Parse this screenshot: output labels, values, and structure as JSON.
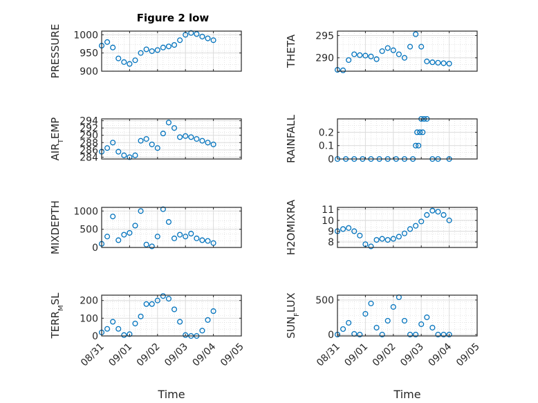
{
  "figure": {
    "title": "Figure 2 low"
  },
  "chart_data": [
    {
      "type": "scatter",
      "title": "Figure 2 low",
      "ylabel": "PRESSURE",
      "xlabel": "",
      "xlim": [
        "08/31",
        "09/05"
      ],
      "ylim": [
        900,
        1010
      ],
      "yticks": [
        "900",
        "950",
        "1000"
      ],
      "xticks": [],
      "x": [
        0.0,
        0.2,
        0.4,
        0.6,
        0.8,
        1.0,
        1.2,
        1.4,
        1.6,
        1.8,
        2.0,
        2.2,
        2.4,
        2.6,
        2.8,
        3.0,
        3.2,
        3.4,
        3.6,
        3.8,
        4.0
      ],
      "y": [
        970,
        980,
        965,
        935,
        925,
        920,
        930,
        950,
        960,
        955,
        958,
        965,
        968,
        972,
        985,
        1000,
        1005,
        1002,
        995,
        990,
        985
      ]
    },
    {
      "type": "scatter",
      "ylabel": "THETA",
      "xlabel": "",
      "xlim": [
        "08/31",
        "09/05"
      ],
      "ylim": [
        287,
        296
      ],
      "yticks": [
        "290",
        "295"
      ],
      "xticks": [],
      "x": [
        0.0,
        0.2,
        0.4,
        0.6,
        0.8,
        1.0,
        1.2,
        1.4,
        1.6,
        1.8,
        2.0,
        2.2,
        2.4,
        2.6,
        2.8,
        3.0,
        3.2,
        3.4,
        3.6,
        3.8,
        4.0
      ],
      "y": [
        287.3,
        287.2,
        289.5,
        290.8,
        290.6,
        290.5,
        290.3,
        289.7,
        291.5,
        292.2,
        291.7,
        290.8,
        290.0,
        292.5,
        295.3,
        292.5,
        289.2,
        289.0,
        288.9,
        288.8,
        288.7
      ]
    },
    {
      "type": "scatter",
      "ylabel": "AIR_TEMP",
      "xlabel": "",
      "xlim": [
        "08/31",
        "09/05"
      ],
      "ylim": [
        283.5,
        294.5
      ],
      "yticks": [
        "284",
        "286",
        "288",
        "290",
        "292",
        "294"
      ],
      "xticks": [],
      "x": [
        0.0,
        0.2,
        0.4,
        0.6,
        0.8,
        1.0,
        1.2,
        1.4,
        1.6,
        1.8,
        2.0,
        2.2,
        2.4,
        2.6,
        2.8,
        3.0,
        3.2,
        3.4,
        3.6,
        3.8,
        4.0
      ],
      "y": [
        285.5,
        286.5,
        288.0,
        285.5,
        284.5,
        284.0,
        284.5,
        288.5,
        289.0,
        287.5,
        286.5,
        290.5,
        293.5,
        292.0,
        289.5,
        289.8,
        289.5,
        289.0,
        288.5,
        288.0,
        287.5
      ]
    },
    {
      "type": "scatter",
      "ylabel": "RAINFALL",
      "xlabel": "",
      "xlim": [
        "08/31",
        "09/05"
      ],
      "ylim": [
        0,
        0.3
      ],
      "yticks": [
        "0",
        "0.1",
        "0.2"
      ],
      "xticks": [],
      "x": [
        0.0,
        0.3,
        0.6,
        0.9,
        1.2,
        1.5,
        1.8,
        2.1,
        2.4,
        2.7,
        2.8,
        2.85,
        2.9,
        2.95,
        3.0,
        3.05,
        3.1,
        3.2,
        3.4,
        3.6,
        4.0
      ],
      "y": [
        0,
        0,
        0,
        0,
        0,
        0,
        0,
        0,
        0,
        0,
        0.1,
        0.2,
        0.1,
        0.2,
        0.3,
        0.2,
        0.3,
        0.3,
        0,
        0,
        0
      ]
    },
    {
      "type": "scatter",
      "ylabel": "MIXDEPTH",
      "xlabel": "",
      "xlim": [
        "08/31",
        "09/05"
      ],
      "ylim": [
        0,
        1100
      ],
      "yticks": [
        "0",
        "500",
        "1000"
      ],
      "xticks": [],
      "x": [
        0.0,
        0.2,
        0.4,
        0.6,
        0.8,
        1.0,
        1.2,
        1.4,
        1.6,
        1.8,
        2.0,
        2.2,
        2.4,
        2.6,
        2.8,
        3.0,
        3.2,
        3.4,
        3.6,
        3.8,
        4.0
      ],
      "y": [
        100,
        300,
        850,
        200,
        350,
        400,
        600,
        1000,
        80,
        30,
        300,
        1050,
        700,
        250,
        350,
        300,
        380,
        250,
        200,
        180,
        120
      ]
    },
    {
      "type": "scatter",
      "ylabel": "H2OMIXRA",
      "xlabel": "",
      "xlim": [
        "08/31",
        "09/05"
      ],
      "ylim": [
        7.5,
        11.2
      ],
      "yticks": [
        "8",
        "9",
        "10",
        "11"
      ],
      "xticks": [],
      "x": [
        0.0,
        0.2,
        0.4,
        0.6,
        0.8,
        1.0,
        1.2,
        1.4,
        1.6,
        1.8,
        2.0,
        2.2,
        2.4,
        2.6,
        2.8,
        3.0,
        3.2,
        3.4,
        3.6,
        3.8,
        4.0
      ],
      "y": [
        9.0,
        9.2,
        9.3,
        9.0,
        8.6,
        7.8,
        7.6,
        8.2,
        8.3,
        8.2,
        8.3,
        8.5,
        8.8,
        9.2,
        9.5,
        9.9,
        10.5,
        10.9,
        10.8,
        10.5,
        10.0
      ]
    },
    {
      "type": "scatter",
      "ylabel": "TERR_MSL",
      "xlabel": "Time",
      "xlim": [
        "08/31",
        "09/05"
      ],
      "ylim": [
        0,
        230
      ],
      "yticks": [
        "0",
        "100",
        "200"
      ],
      "xticks": [
        "08/31",
        "09/01",
        "09/02",
        "09/03",
        "09/04",
        "09/05"
      ],
      "x": [
        0.0,
        0.2,
        0.4,
        0.6,
        0.8,
        1.0,
        1.2,
        1.4,
        1.6,
        1.8,
        2.0,
        2.2,
        2.4,
        2.6,
        2.8,
        3.0,
        3.2,
        3.4,
        3.6,
        3.8,
        4.0
      ],
      "y": [
        20,
        40,
        80,
        40,
        5,
        10,
        70,
        110,
        180,
        180,
        200,
        225,
        210,
        150,
        80,
        5,
        0,
        0,
        30,
        90,
        140
      ]
    },
    {
      "type": "scatter",
      "ylabel": "SUN_FLUX",
      "xlabel": "Time",
      "xlim": [
        "08/31",
        "09/05"
      ],
      "ylim": [
        -20,
        570
      ],
      "yticks": [
        "0",
        "500"
      ],
      "xticks": [
        "08/31",
        "09/01",
        "09/02",
        "09/03",
        "09/04",
        "09/05"
      ],
      "x": [
        0.0,
        0.2,
        0.4,
        0.6,
        0.8,
        1.0,
        1.2,
        1.4,
        1.6,
        1.8,
        2.0,
        2.2,
        2.4,
        2.6,
        2.8,
        3.0,
        3.2,
        3.4,
        3.6,
        3.8,
        4.0
      ],
      "y": [
        0,
        80,
        170,
        10,
        0,
        300,
        450,
        100,
        0,
        200,
        400,
        540,
        200,
        0,
        0,
        150,
        250,
        100,
        0,
        0,
        0
      ]
    }
  ]
}
